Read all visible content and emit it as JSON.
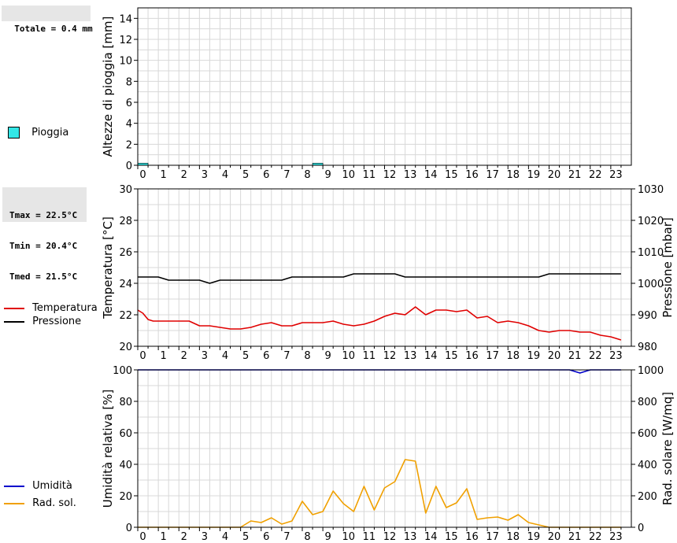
{
  "rain_panel": {
    "total_label": "Totale = 0.4 mm",
    "legend": {
      "label": "Pioggia",
      "color": "#33e6e6"
    }
  },
  "temp_panel": {
    "stats": {
      "tmax": "Tmax = 22.5°C",
      "tmin": "Tmin = 20.4°C",
      "tmed": "Tmed = 21.5°C"
    },
    "legend": [
      {
        "label": "Temperatura",
        "color": "#e00000"
      },
      {
        "label": "Pressione",
        "color": "#000000"
      }
    ]
  },
  "humidity_panel": {
    "legend": [
      {
        "label": "Umidità",
        "color": "#0000cc"
      },
      {
        "label": "Rad. sol.",
        "color": "#f0a000"
      }
    ]
  },
  "chart_data": [
    {
      "type": "bar",
      "ylabel": "Altezze di pioggia [mm]",
      "ylim": [
        0,
        15
      ],
      "yticks": [
        0,
        2,
        4,
        6,
        8,
        10,
        12,
        14
      ],
      "xlim": [
        0,
        24
      ],
      "xticks": [
        "0",
        "1",
        "2",
        "3",
        "4",
        "5",
        "6",
        "7",
        "8",
        "9",
        "10",
        "11",
        "12",
        "13",
        "14",
        "15",
        "16",
        "17",
        "18",
        "19",
        "20",
        "21",
        "22",
        "23"
      ],
      "grid": true,
      "series": [
        {
          "name": "Pioggia",
          "color": "#33e6e6",
          "x": [
            0,
            8.5
          ],
          "width": 0.5,
          "values": [
            0.2,
            0.2
          ]
        }
      ]
    },
    {
      "type": "line",
      "ylabel": "Temperatura [°C]",
      "ylabel_right": "Pressione [mbar]",
      "ylim": [
        20,
        30
      ],
      "yticks": [
        20,
        22,
        24,
        26,
        28,
        30
      ],
      "ylim_right": [
        980,
        1030
      ],
      "yticks_right": [
        980,
        990,
        1000,
        1010,
        1020,
        1030
      ],
      "xlim": [
        0,
        24
      ],
      "xticks": [
        "0",
        "1",
        "2",
        "3",
        "4",
        "5",
        "6",
        "7",
        "8",
        "9",
        "10",
        "11",
        "12",
        "13",
        "14",
        "15",
        "16",
        "17",
        "18",
        "19",
        "20",
        "21",
        "22",
        "23"
      ],
      "grid": true,
      "series": [
        {
          "name": "Temperatura",
          "axis": "left",
          "color": "#e00000",
          "x": [
            0,
            0.25,
            0.5,
            0.75,
            1,
            1.5,
            2,
            2.5,
            3,
            3.5,
            4,
            4.5,
            5,
            5.5,
            6,
            6.5,
            7,
            7.5,
            8,
            8.5,
            9,
            9.5,
            10,
            10.5,
            11,
            11.5,
            12,
            12.5,
            13,
            13.5,
            14,
            14.5,
            15,
            15.5,
            16,
            16.5,
            17,
            17.5,
            18,
            18.5,
            19,
            19.5,
            20,
            20.5,
            21,
            21.5,
            22,
            22.5,
            23,
            23.5
          ],
          "values": [
            22.3,
            22.1,
            21.7,
            21.6,
            21.6,
            21.6,
            21.6,
            21.6,
            21.3,
            21.3,
            21.2,
            21.1,
            21.1,
            21.2,
            21.4,
            21.5,
            21.3,
            21.3,
            21.5,
            21.5,
            21.5,
            21.6,
            21.4,
            21.3,
            21.4,
            21.6,
            21.9,
            22.1,
            22.0,
            22.5,
            22.0,
            22.3,
            22.3,
            22.2,
            22.3,
            21.8,
            21.9,
            21.5,
            21.6,
            21.5,
            21.3,
            21.0,
            20.9,
            21.0,
            21.0,
            20.9,
            20.9,
            20.7,
            20.6,
            20.4
          ]
        },
        {
          "name": "Pressione",
          "axis": "right",
          "color": "#000000",
          "x": [
            0,
            1,
            1.5,
            2,
            2.5,
            3,
            3.5,
            4,
            4.5,
            5,
            5.5,
            6,
            6.5,
            7,
            7.5,
            8,
            8.5,
            9,
            9.5,
            10,
            10.5,
            11,
            11.5,
            12,
            12.5,
            13,
            13.5,
            14,
            14.5,
            15,
            15.5,
            16,
            16.5,
            17,
            17.5,
            18,
            18.5,
            19,
            19.5,
            20,
            20.5,
            21,
            21.5,
            22,
            22.5,
            23,
            23.5
          ],
          "values": [
            1002,
            1002,
            1001,
            1001,
            1001,
            1001,
            1000,
            1001,
            1001,
            1001,
            1001,
            1001,
            1001,
            1001,
            1002,
            1002,
            1002,
            1002,
            1002,
            1002,
            1003,
            1003,
            1003,
            1003,
            1003,
            1002,
            1002,
            1002,
            1002,
            1002,
            1002,
            1002,
            1002,
            1002,
            1002,
            1002,
            1002,
            1002,
            1002,
            1003,
            1003,
            1003,
            1003,
            1003,
            1003,
            1003,
            1003
          ]
        }
      ]
    },
    {
      "type": "line",
      "ylabel": "Umidità relativa [%]",
      "ylabel_right": "Rad. solare [W/mq]",
      "ylim": [
        0,
        100
      ],
      "yticks": [
        0,
        20,
        40,
        60,
        80,
        100
      ],
      "ylim_right": [
        0,
        1000
      ],
      "yticks_right": [
        0,
        200,
        400,
        600,
        800,
        1000
      ],
      "xlim": [
        0,
        24
      ],
      "xticks": [
        "0",
        "1",
        "2",
        "3",
        "4",
        "5",
        "6",
        "7",
        "8",
        "9",
        "10",
        "11",
        "12",
        "13",
        "14",
        "15",
        "16",
        "17",
        "18",
        "19",
        "20",
        "21",
        "22",
        "23"
      ],
      "grid": true,
      "series": [
        {
          "name": "Umidità",
          "axis": "left",
          "color": "#0000cc",
          "x": [
            0,
            21,
            21.5,
            22,
            23.5
          ],
          "values": [
            100,
            100,
            98,
            100,
            100
          ]
        },
        {
          "name": "Rad. sol.",
          "axis": "right",
          "color": "#f0a000",
          "x": [
            0,
            0.5,
            1,
            1.5,
            2,
            2.5,
            3,
            3.5,
            4,
            4.5,
            5,
            5.5,
            6,
            6.5,
            7,
            7.5,
            8,
            8.5,
            9,
            9.5,
            10,
            10.5,
            11,
            11.5,
            12,
            12.5,
            13,
            13.5,
            14,
            14.5,
            15,
            15.5,
            16,
            16.5,
            17,
            17.5,
            18,
            18.5,
            19,
            19.5,
            20,
            20.5,
            21,
            21.5,
            22,
            22.5,
            23,
            23.5
          ],
          "values": [
            0,
            0,
            0,
            0,
            0,
            0,
            0,
            0,
            0,
            0,
            0,
            40,
            30,
            60,
            20,
            40,
            165,
            80,
            100,
            230,
            150,
            100,
            260,
            110,
            250,
            290,
            430,
            420,
            90,
            260,
            125,
            155,
            245,
            50,
            60,
            65,
            45,
            80,
            30,
            15,
            0,
            0,
            0,
            0,
            0,
            0,
            0,
            0
          ]
        }
      ]
    }
  ]
}
